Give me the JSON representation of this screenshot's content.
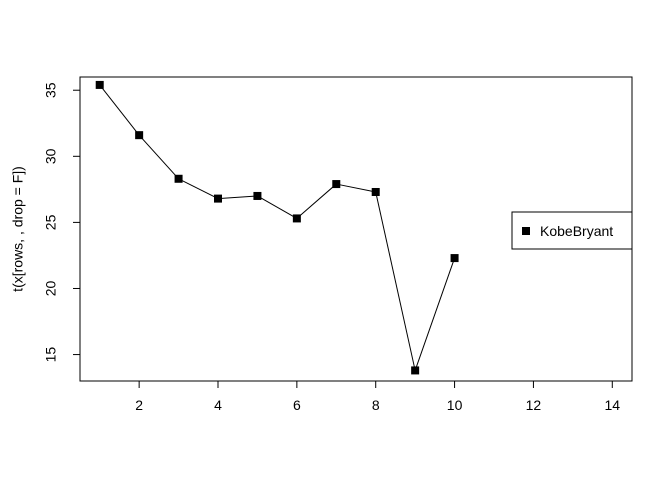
{
  "chart_data": {
    "type": "line",
    "title": "",
    "xlabel": "",
    "ylabel": "t(x[rows, , drop = F])",
    "xlim": [
      0.5,
      14.5
    ],
    "ylim": [
      13,
      36
    ],
    "xticks": [
      2,
      4,
      6,
      8,
      10,
      12,
      14
    ],
    "yticks": [
      15,
      20,
      25,
      30,
      35
    ],
    "grid": false,
    "legend_position": "right",
    "marker": "square",
    "colors": {
      "line": "#000000",
      "marker": "#000000"
    },
    "series": [
      {
        "name": "KobeBryant",
        "x": [
          1,
          2,
          3,
          4,
          5,
          6,
          7,
          8,
          9,
          10
        ],
        "y": [
          35.4,
          31.6,
          28.3,
          26.8,
          27.0,
          25.3,
          27.9,
          27.3,
          13.8,
          22.3
        ]
      }
    ]
  }
}
